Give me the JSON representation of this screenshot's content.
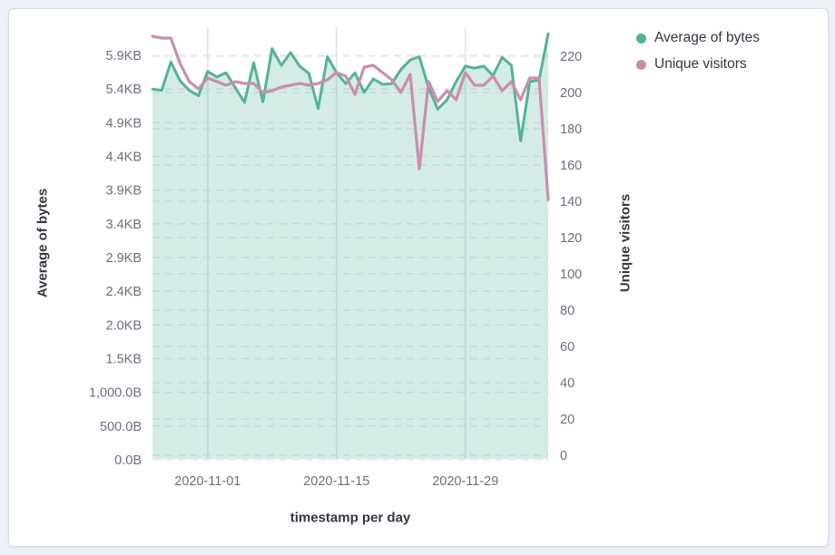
{
  "panel": {
    "background": "#ffffff",
    "border_color": "#d3dae6"
  },
  "page": {
    "background": "#edf0f7"
  },
  "grid": {
    "h_dash_color": "#e4e9f1",
    "v_line_color": "#e1e7f0"
  },
  "text_colors": {
    "tick": "#69707d",
    "title": "#343741"
  },
  "chart_data": {
    "type": "area",
    "title": "",
    "x": [
      "2020-10-26",
      "2020-10-27",
      "2020-10-28",
      "2020-10-29",
      "2020-10-30",
      "2020-10-31",
      "2020-11-01",
      "2020-11-02",
      "2020-11-03",
      "2020-11-04",
      "2020-11-05",
      "2020-11-06",
      "2020-11-07",
      "2020-11-08",
      "2020-11-09",
      "2020-11-10",
      "2020-11-11",
      "2020-11-12",
      "2020-11-13",
      "2020-11-14",
      "2020-11-15",
      "2020-11-16",
      "2020-11-17",
      "2020-11-18",
      "2020-11-19",
      "2020-11-20",
      "2020-11-21",
      "2020-11-22",
      "2020-11-23",
      "2020-11-24",
      "2020-11-25",
      "2020-11-26",
      "2020-11-27",
      "2020-11-28",
      "2020-11-29",
      "2020-11-30",
      "2020-12-01",
      "2020-12-02",
      "2020-12-03",
      "2020-12-04",
      "2020-12-05",
      "2020-12-06",
      "2020-12-07",
      "2020-12-08"
    ],
    "series": [
      {
        "name": "Average of bytes",
        "type": "area",
        "axis": "left",
        "color": "#54B399",
        "fill": "rgba(84,179,153,0.25)",
        "values": [
          5500,
          5480,
          5900,
          5620,
          5480,
          5400,
          5760,
          5680,
          5740,
          5520,
          5300,
          5890,
          5310,
          6100,
          5850,
          6040,
          5840,
          5730,
          5210,
          5980,
          5740,
          5580,
          5740,
          5450,
          5650,
          5570,
          5580,
          5790,
          5930,
          5980,
          5520,
          5200,
          5340,
          5610,
          5840,
          5810,
          5840,
          5700,
          5970,
          5850,
          4730,
          5610,
          5630,
          6320
        ]
      },
      {
        "name": "Unique visitors",
        "type": "line",
        "axis": "right",
        "color": "#CA8EAE",
        "values": [
          231,
          230,
          230,
          216,
          206,
          202,
          208,
          206,
          204,
          206,
          205,
          205,
          200,
          201,
          203,
          204,
          205,
          204,
          205,
          207,
          211,
          209,
          199,
          214,
          215,
          211,
          207,
          200,
          210,
          158,
          206,
          195,
          201,
          196,
          211,
          204,
          204,
          209,
          201,
          206,
          196,
          208,
          208,
          141
        ]
      }
    ],
    "left_axis": {
      "title": "Average of bytes",
      "max_value": 6000,
      "ticks": [
        {
          "label": "0.0B",
          "value": 0
        },
        {
          "label": "500.0B",
          "value": 500
        },
        {
          "label": "1,000.0B",
          "value": 1000
        },
        {
          "label": "1.5KB",
          "value": 1500
        },
        {
          "label": "2.0KB",
          "value": 2000
        },
        {
          "label": "2.4KB",
          "value": 2500
        },
        {
          "label": "2.9KB",
          "value": 3000
        },
        {
          "label": "3.4KB",
          "value": 3500
        },
        {
          "label": "3.9KB",
          "value": 4000
        },
        {
          "label": "4.4KB",
          "value": 4500
        },
        {
          "label": "4.9KB",
          "value": 5000
        },
        {
          "label": "5.4KB",
          "value": 5500
        },
        {
          "label": "5.9KB",
          "value": 6000
        }
      ]
    },
    "right_axis": {
      "title": "Unique visitors",
      "max_value": 220,
      "ticks": [
        {
          "label": "0",
          "value": 0
        },
        {
          "label": "20",
          "value": 20
        },
        {
          "label": "40",
          "value": 40
        },
        {
          "label": "60",
          "value": 60
        },
        {
          "label": "80",
          "value": 80
        },
        {
          "label": "100",
          "value": 100
        },
        {
          "label": "120",
          "value": 120
        },
        {
          "label": "140",
          "value": 140
        },
        {
          "label": "160",
          "value": 160
        },
        {
          "label": "180",
          "value": 180
        },
        {
          "label": "200",
          "value": 200
        },
        {
          "label": "220",
          "value": 220
        }
      ]
    },
    "x_axis": {
      "title": "timestamp per day",
      "ticks": [
        {
          "label": "2020-11-01",
          "index": 6
        },
        {
          "label": "2020-11-15",
          "index": 20
        },
        {
          "label": "2020-11-29",
          "index": 34
        }
      ]
    },
    "legend_position": "top-right",
    "grid": true
  }
}
